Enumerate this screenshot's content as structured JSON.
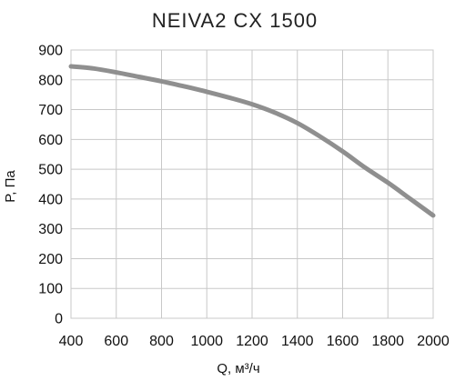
{
  "chart_data": {
    "type": "line",
    "title": "NEIVA2 CX 1500",
    "xlabel": "Q, м³/ч",
    "ylabel": "P, Па",
    "xlim": [
      400,
      2000
    ],
    "ylim": [
      0,
      900
    ],
    "xticks": [
      400,
      600,
      800,
      1000,
      1200,
      1400,
      1600,
      1800,
      2000
    ],
    "yticks": [
      0,
      100,
      200,
      300,
      400,
      500,
      600,
      700,
      800,
      900
    ],
    "grid": true,
    "series": [
      {
        "color": "#8f8f8f",
        "x": [
          400,
          500,
          600,
          700,
          800,
          900,
          1000,
          1100,
          1200,
          1300,
          1400,
          1500,
          1600,
          1700,
          1800,
          1900,
          2000
        ],
        "y": [
          845,
          838,
          825,
          810,
          795,
          778,
          760,
          740,
          718,
          690,
          655,
          610,
          560,
          505,
          455,
          400,
          345
        ]
      }
    ]
  }
}
